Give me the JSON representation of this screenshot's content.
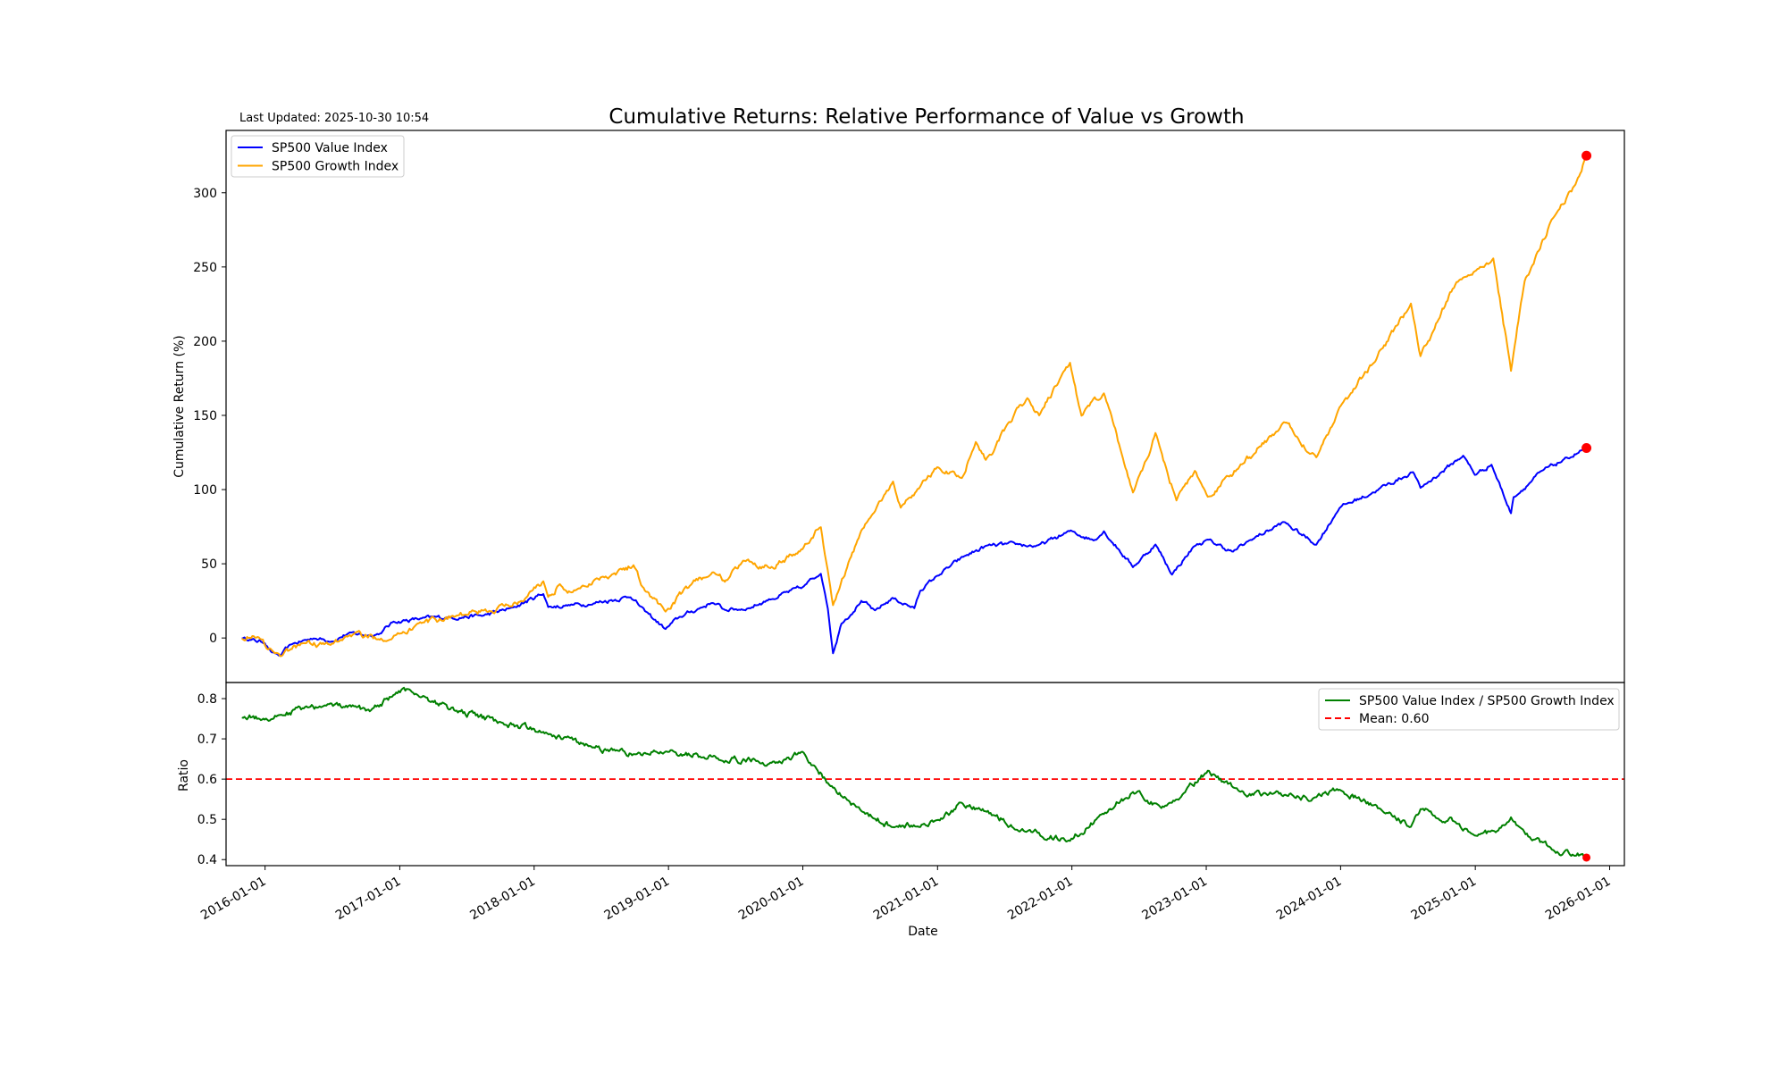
{
  "header": {
    "title": "Cumulative Returns: Relative Performance of Value vs Growth",
    "last_updated": "Last Updated: 2025-10-30 10:54"
  },
  "chart_data": [
    {
      "type": "line",
      "ylabel": "Cumulative Return (%)",
      "ylim": [
        -30,
        342
      ],
      "yticks": [
        0,
        50,
        100,
        150,
        200,
        250,
        300
      ],
      "xlim": [
        "2015-09-17",
        "2026-02-10"
      ],
      "legend_position": "upper-left",
      "grid": false,
      "series": [
        {
          "name": "SP500 Value Index",
          "color": "#0000ff",
          "points": [
            [
              "2015-10-30",
              0
            ],
            [
              "2015-11-20",
              -1
            ],
            [
              "2015-12-31",
              -3
            ],
            [
              "2016-01-20",
              -10
            ],
            [
              "2016-02-11",
              -12
            ],
            [
              "2016-03-15",
              -4
            ],
            [
              "2016-05-15",
              0
            ],
            [
              "2016-06-27",
              -2
            ],
            [
              "2016-08-15",
              3
            ],
            [
              "2016-10-10",
              2
            ],
            [
              "2016-11-08",
              3
            ],
            [
              "2016-12-15",
              11
            ],
            [
              "2017-03-01",
              13
            ],
            [
              "2017-05-15",
              14
            ],
            [
              "2017-08-15",
              15
            ],
            [
              "2017-11-01",
              20
            ],
            [
              "2018-01-26",
              30
            ],
            [
              "2018-02-08",
              21
            ],
            [
              "2018-04-01",
              22
            ],
            [
              "2018-06-01",
              23
            ],
            [
              "2018-09-20",
              28
            ],
            [
              "2018-10-29",
              18
            ],
            [
              "2018-12-24",
              6
            ],
            [
              "2019-01-31",
              14
            ],
            [
              "2019-04-30",
              24
            ],
            [
              "2019-06-03",
              19
            ],
            [
              "2019-08-05",
              20
            ],
            [
              "2019-10-01",
              26
            ],
            [
              "2019-12-31",
              34
            ],
            [
              "2020-02-19",
              44
            ],
            [
              "2020-03-09",
              20
            ],
            [
              "2020-03-23",
              -10
            ],
            [
              "2020-04-15",
              10
            ],
            [
              "2020-06-08",
              25
            ],
            [
              "2020-07-15",
              18
            ],
            [
              "2020-09-01",
              27
            ],
            [
              "2020-10-30",
              20
            ],
            [
              "2020-11-15",
              32
            ],
            [
              "2021-01-01",
              42
            ],
            [
              "2021-03-15",
              55
            ],
            [
              "2021-05-15",
              62
            ],
            [
              "2021-08-01",
              63
            ],
            [
              "2021-10-01",
              62
            ],
            [
              "2021-12-29",
              72
            ],
            [
              "2022-03-01",
              66
            ],
            [
              "2022-03-29",
              72
            ],
            [
              "2022-06-16",
              48
            ],
            [
              "2022-08-16",
              63
            ],
            [
              "2022-09-30",
              43
            ],
            [
              "2022-11-30",
              62
            ],
            [
              "2023-01-05",
              66
            ],
            [
              "2023-03-15",
              58
            ],
            [
              "2023-05-01",
              66
            ],
            [
              "2023-07-31",
              78
            ],
            [
              "2023-10-27",
              63
            ],
            [
              "2023-12-29",
              88
            ],
            [
              "2024-03-28",
              98
            ],
            [
              "2024-07-16",
              112
            ],
            [
              "2024-08-05",
              101
            ],
            [
              "2024-11-29",
              123
            ],
            [
              "2024-12-31",
              110
            ],
            [
              "2025-02-14",
              117
            ],
            [
              "2025-04-08",
              84
            ],
            [
              "2025-04-15",
              95
            ],
            [
              "2025-06-30",
              112
            ],
            [
              "2025-08-30",
              120
            ],
            [
              "2025-10-30",
              128
            ]
          ]
        },
        {
          "name": "SP500 Growth Index",
          "color": "#ffa500",
          "points": [
            [
              "2015-10-30",
              0
            ],
            [
              "2015-12-01",
              2
            ],
            [
              "2016-01-20",
              -8
            ],
            [
              "2016-02-11",
              -12
            ],
            [
              "2016-04-15",
              -3
            ],
            [
              "2016-06-27",
              -5
            ],
            [
              "2016-08-15",
              2
            ],
            [
              "2016-11-04",
              0
            ],
            [
              "2016-12-30",
              3
            ],
            [
              "2017-03-01",
              10
            ],
            [
              "2017-06-01",
              15
            ],
            [
              "2017-09-01",
              18
            ],
            [
              "2017-11-30",
              25
            ],
            [
              "2018-01-26",
              38
            ],
            [
              "2018-02-08",
              28
            ],
            [
              "2018-03-12",
              36
            ],
            [
              "2018-04-02",
              30
            ],
            [
              "2018-06-20",
              40
            ],
            [
              "2018-09-28",
              49
            ],
            [
              "2018-10-29",
              32
            ],
            [
              "2018-12-24",
              18
            ],
            [
              "2019-02-28",
              35
            ],
            [
              "2019-04-30",
              45
            ],
            [
              "2019-06-03",
              38
            ],
            [
              "2019-07-26",
              52
            ],
            [
              "2019-10-01",
              48
            ],
            [
              "2019-12-31",
              60
            ],
            [
              "2020-02-19",
              75
            ],
            [
              "2020-03-23",
              22
            ],
            [
              "2020-06-08",
              72
            ],
            [
              "2020-09-02",
              105
            ],
            [
              "2020-09-23",
              88
            ],
            [
              "2020-12-31",
              115
            ],
            [
              "2021-03-08",
              108
            ],
            [
              "2021-04-15",
              133
            ],
            [
              "2021-05-12",
              120
            ],
            [
              "2021-09-02",
              162
            ],
            [
              "2021-10-04",
              150
            ],
            [
              "2021-12-27",
              185
            ],
            [
              "2022-01-27",
              150
            ],
            [
              "2022-03-29",
              165
            ],
            [
              "2022-06-16",
              98
            ],
            [
              "2022-08-16",
              138
            ],
            [
              "2022-10-12",
              93
            ],
            [
              "2022-12-01",
              112
            ],
            [
              "2023-01-05",
              95
            ],
            [
              "2023-04-01",
              115
            ],
            [
              "2023-07-31",
              145
            ],
            [
              "2023-10-27",
              122
            ],
            [
              "2023-12-29",
              155
            ],
            [
              "2024-03-28",
              185
            ],
            [
              "2024-07-10",
              225
            ],
            [
              "2024-08-05",
              190
            ],
            [
              "2024-11-11",
              240
            ],
            [
              "2025-01-03",
              248
            ],
            [
              "2025-02-19",
              256
            ],
            [
              "2025-04-08",
              180
            ],
            [
              "2025-05-15",
              240
            ],
            [
              "2025-07-31",
              282
            ],
            [
              "2025-09-30",
              305
            ],
            [
              "2025-10-30",
              325
            ]
          ]
        }
      ],
      "markers": [
        {
          "series": "SP500 Value Index",
          "x": "2025-10-30",
          "y": 128,
          "color": "#ff0000"
        },
        {
          "series": "SP500 Growth Index",
          "x": "2025-10-30",
          "y": 325,
          "color": "#ff0000"
        }
      ]
    },
    {
      "type": "line",
      "xlabel": "Date",
      "ylabel": "Ratio",
      "ylim": [
        0.385,
        0.84
      ],
      "yticks": [
        0.4,
        0.5,
        0.6,
        0.7,
        0.8
      ],
      "xlim": [
        "2015-09-17",
        "2026-02-10"
      ],
      "xticks": [
        "2016-01-01",
        "2017-01-01",
        "2018-01-01",
        "2019-01-01",
        "2020-01-01",
        "2021-01-01",
        "2022-01-01",
        "2023-01-01",
        "2024-01-01",
        "2025-01-01",
        "2026-01-01"
      ],
      "legend_position": "upper-right",
      "grid": false,
      "series": [
        {
          "name": "SP500 Value Index / SP500 Growth Index",
          "color": "#008000",
          "points": [
            [
              "2015-10-30",
              0.755
            ],
            [
              "2015-12-31",
              0.75
            ],
            [
              "2016-02-11",
              0.76
            ],
            [
              "2016-04-15",
              0.775
            ],
            [
              "2016-06-01",
              0.78
            ],
            [
              "2016-08-01",
              0.78
            ],
            [
              "2016-10-15",
              0.77
            ],
            [
              "2016-12-15",
              0.81
            ],
            [
              "2017-01-30",
              0.82
            ],
            [
              "2017-06-01",
              0.77
            ],
            [
              "2017-10-01",
              0.74
            ],
            [
              "2018-01-26",
              0.72
            ],
            [
              "2018-06-01",
              0.68
            ],
            [
              "2018-10-01",
              0.66
            ],
            [
              "2018-12-24",
              0.67
            ],
            [
              "2019-05-01",
              0.655
            ],
            [
              "2019-10-01",
              0.64
            ],
            [
              "2019-12-31",
              0.665
            ],
            [
              "2020-03-23",
              0.58
            ],
            [
              "2020-06-08",
              0.52
            ],
            [
              "2020-09-02",
              0.48
            ],
            [
              "2020-12-31",
              0.495
            ],
            [
              "2021-03-08",
              0.54
            ],
            [
              "2021-06-01",
              0.51
            ],
            [
              "2021-09-02",
              0.47
            ],
            [
              "2021-12-27",
              0.445
            ],
            [
              "2022-03-15",
              0.505
            ],
            [
              "2022-06-16",
              0.57
            ],
            [
              "2022-09-01",
              0.53
            ],
            [
              "2022-11-01",
              0.565
            ],
            [
              "2023-01-05",
              0.62
            ],
            [
              "2023-04-01",
              0.57
            ],
            [
              "2023-08-01",
              0.56
            ],
            [
              "2023-10-27",
              0.555
            ],
            [
              "2023-12-29",
              0.575
            ],
            [
              "2024-04-01",
              0.535
            ],
            [
              "2024-07-10",
              0.48
            ],
            [
              "2024-08-05",
              0.525
            ],
            [
              "2024-11-11",
              0.49
            ],
            [
              "2025-01-03",
              0.46
            ],
            [
              "2025-03-01",
              0.47
            ],
            [
              "2025-04-08",
              0.505
            ],
            [
              "2025-06-01",
              0.45
            ],
            [
              "2025-08-01",
              0.425
            ],
            [
              "2025-10-30",
              0.405
            ]
          ]
        }
      ],
      "reference_lines": [
        {
          "name": "Mean: 0.60",
          "y": 0.6,
          "color": "#ff0000",
          "style": "dashed"
        }
      ],
      "markers": [
        {
          "series": "SP500 Value Index / SP500 Growth Index",
          "x": "2025-10-30",
          "y": 0.405,
          "color": "#ff0000"
        }
      ]
    }
  ]
}
